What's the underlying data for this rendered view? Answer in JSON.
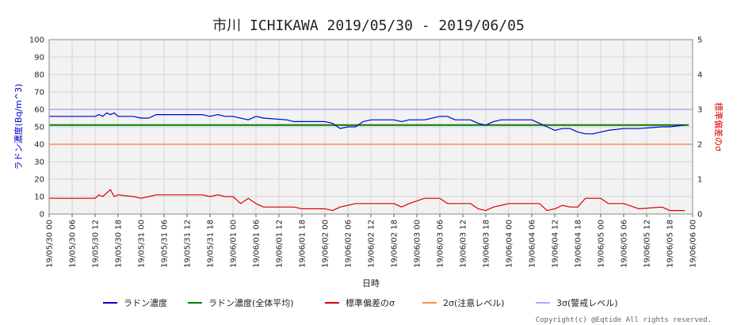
{
  "chart_data": {
    "type": "line",
    "title": "市川 ICHIKAWA 2019/05/30 - 2019/06/05",
    "xlabel": "日時",
    "ylabel_left": "ラドン濃度(Bq/m^3)",
    "ylabel_right": "標準偏差のσ",
    "ylim_left": [
      0,
      100
    ],
    "ylim_right": [
      0,
      5
    ],
    "y_ticks_left": [
      "0",
      "10",
      "20",
      "30",
      "40",
      "50",
      "60",
      "70",
      "80",
      "90",
      "100"
    ],
    "y_ticks_right": [
      "0",
      "1",
      "2",
      "3",
      "4",
      "5"
    ],
    "x_ticks": [
      "19/05/30 00",
      "19/05/30 06",
      "19/05/30 12",
      "19/05/30 18",
      "19/05/31 00",
      "19/05/31 06",
      "19/05/31 12",
      "19/05/31 18",
      "19/06/01 00",
      "19/06/01 06",
      "19/06/01 12",
      "19/06/01 18",
      "19/06/02 00",
      "19/06/02 06",
      "19/06/02 12",
      "19/06/02 18",
      "19/06/03 00",
      "19/06/03 06",
      "19/06/03 12",
      "19/06/03 18",
      "19/06/04 00",
      "19/06/04 06",
      "19/06/04 12",
      "19/06/04 18",
      "19/06/05 00",
      "19/06/05 06",
      "19/06/05 12",
      "19/06/05 18",
      "19/06/06 00"
    ],
    "x_range_hours": [
      0,
      168
    ],
    "grid": true,
    "legend_position": "bottom",
    "series": [
      {
        "name": "ラドン濃度",
        "color": "#0000cc",
        "axis": "left",
        "x": [
          0,
          12,
          13,
          14,
          15,
          16,
          17,
          18,
          22,
          24,
          26,
          28,
          40,
          42,
          44,
          46,
          48,
          52,
          54,
          56,
          62,
          64,
          66,
          68,
          72,
          74,
          76,
          78,
          80,
          82,
          84,
          90,
          92,
          94,
          98,
          102,
          104,
          106,
          110,
          112,
          114,
          116,
          118,
          120,
          126,
          128,
          130,
          132,
          134,
          136,
          138,
          140,
          142,
          144,
          146,
          150,
          154,
          160,
          162,
          166
        ],
        "y": [
          56,
          56,
          57,
          56,
          58,
          57,
          58,
          56,
          56,
          55,
          55,
          57,
          57,
          56,
          57,
          56,
          56,
          54,
          56,
          55,
          54,
          53,
          53,
          53,
          53,
          52,
          49,
          50,
          50,
          53,
          54,
          54,
          53,
          54,
          54,
          56,
          56,
          54,
          54,
          52,
          51,
          53,
          54,
          54,
          54,
          52,
          50,
          48,
          49,
          49,
          47,
          46,
          46,
          47,
          48,
          49,
          49,
          50,
          50,
          51
        ]
      },
      {
        "name": "ラドン濃度(全体平均)",
        "color": "#008000",
        "axis": "left",
        "x": [
          0,
          167
        ],
        "y": [
          51,
          51
        ]
      },
      {
        "name": "標準偏差のσ",
        "color": "#dd0000",
        "axis": "right",
        "x": [
          0,
          12,
          13,
          14,
          15,
          16,
          17,
          18,
          22,
          24,
          26,
          28,
          40,
          42,
          44,
          46,
          48,
          50,
          52,
          54,
          56,
          62,
          64,
          66,
          68,
          72,
          74,
          76,
          78,
          80,
          82,
          84,
          90,
          92,
          94,
          98,
          102,
          104,
          106,
          110,
          112,
          114,
          116,
          118,
          120,
          126,
          128,
          130,
          132,
          134,
          136,
          138,
          140,
          142,
          144,
          146,
          150,
          154,
          160,
          162,
          166
        ],
        "y": [
          0.45,
          0.45,
          0.55,
          0.5,
          0.6,
          0.7,
          0.5,
          0.55,
          0.5,
          0.45,
          0.5,
          0.55,
          0.55,
          0.5,
          0.55,
          0.5,
          0.5,
          0.3,
          0.45,
          0.3,
          0.2,
          0.2,
          0.2,
          0.15,
          0.15,
          0.15,
          0.1,
          0.2,
          0.25,
          0.3,
          0.3,
          0.3,
          0.3,
          0.2,
          0.3,
          0.45,
          0.45,
          0.3,
          0.3,
          0.3,
          0.15,
          0.1,
          0.2,
          0.25,
          0.3,
          0.3,
          0.3,
          0.1,
          0.15,
          0.25,
          0.2,
          0.2,
          0.45,
          0.45,
          0.45,
          0.3,
          0.3,
          0.15,
          0.2,
          0.1,
          0.1
        ]
      },
      {
        "name": "2σ(注意レベル)",
        "color": "#ff8c50",
        "axis": "right",
        "x": [
          0,
          168
        ],
        "y": [
          2,
          2
        ]
      },
      {
        "name": "3σ(警戒レベル)",
        "color": "#c39bff",
        "axis": "right",
        "x": [
          0,
          168
        ],
        "y": [
          3,
          3
        ]
      }
    ]
  },
  "copyright": "Copyright(c) @Eqtide All rights reserved."
}
